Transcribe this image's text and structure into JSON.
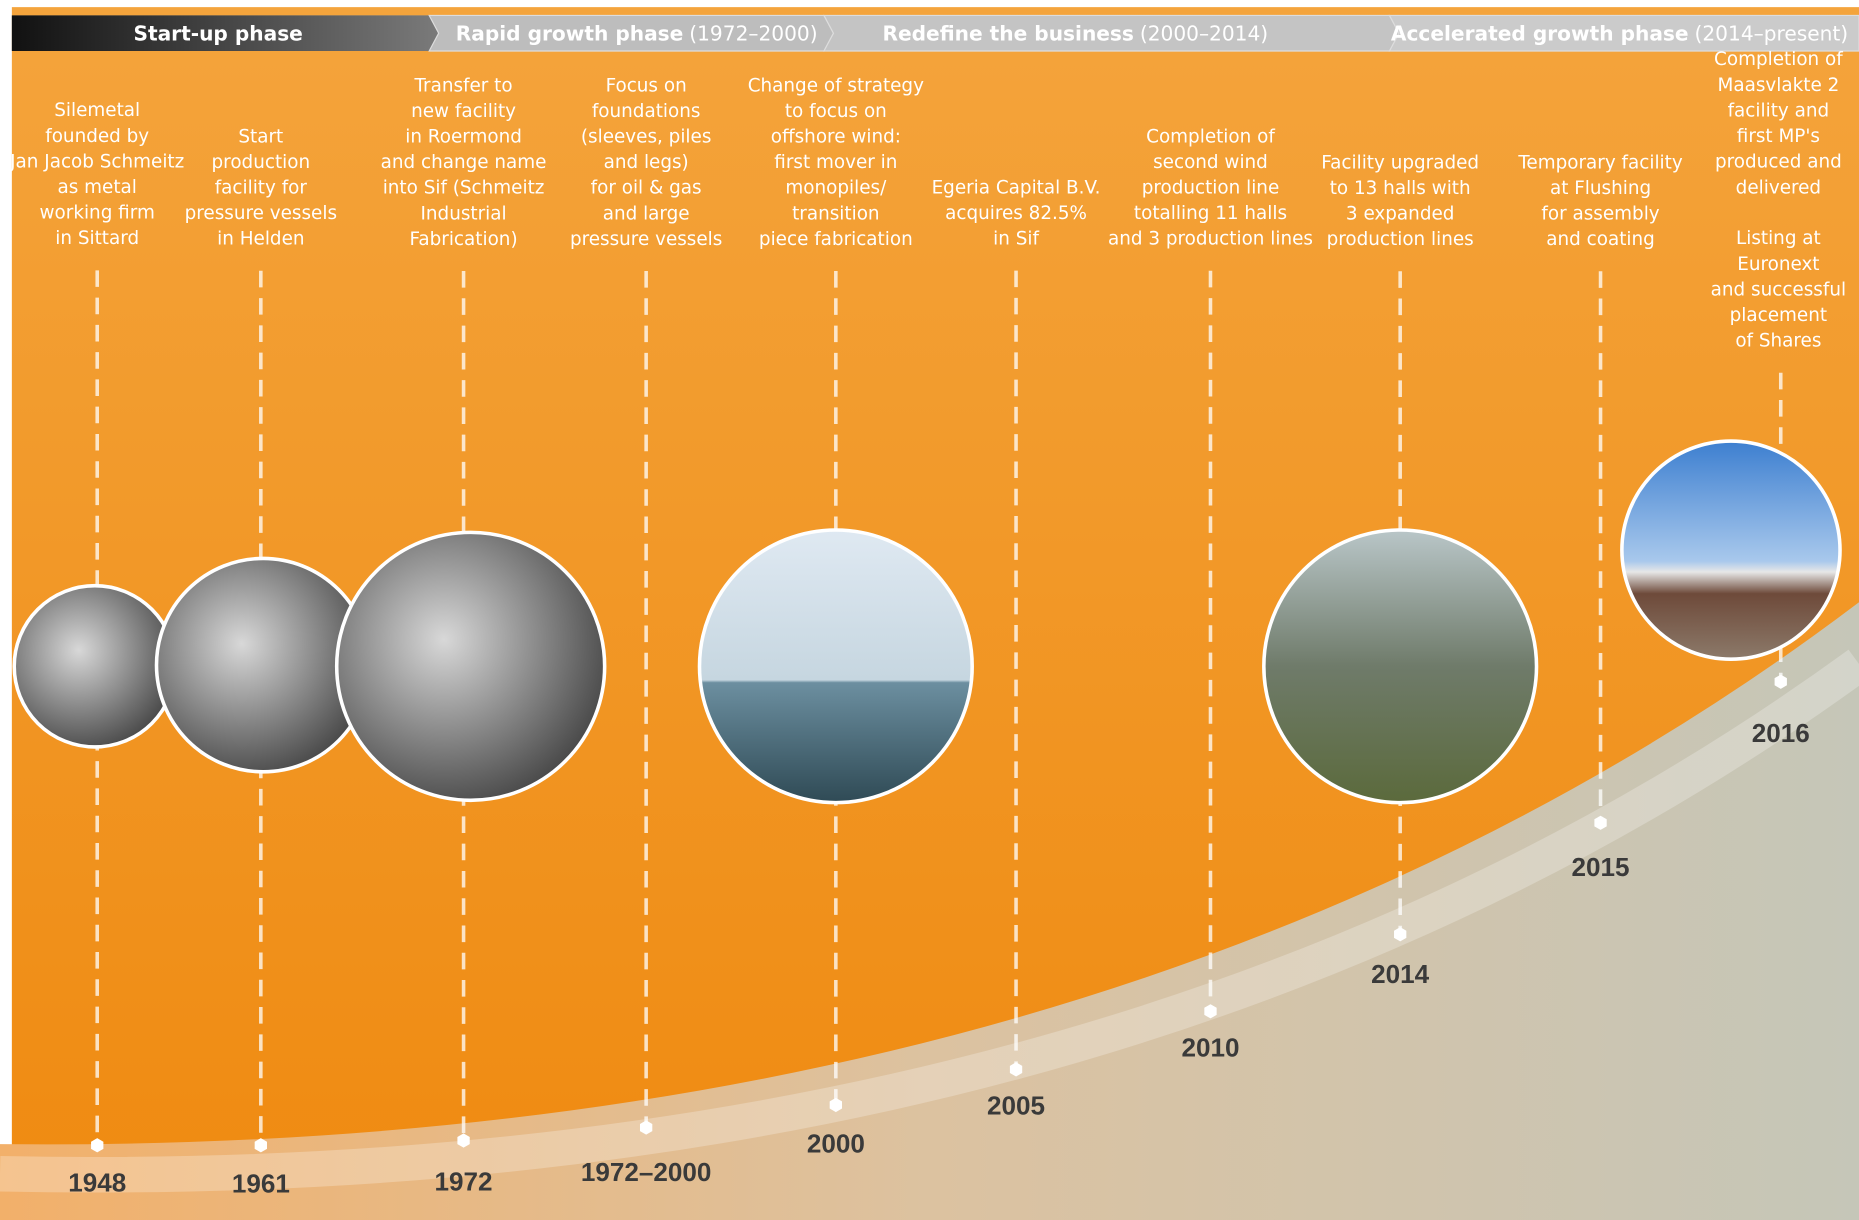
{
  "phases": [
    {
      "name": "Start-up phase"
    },
    {
      "name": "Rapid growth phase",
      "period": "(1972–2000)"
    },
    {
      "name": "Redefine the business",
      "period": "(2000–2014)"
    },
    {
      "name": "Accelerated growth phase",
      "period": "(2014–present)"
    }
  ],
  "events": [
    {
      "year": "1948",
      "lines": [
        "Silemetal",
        "founded by",
        "Jan Jacob Schmeitz",
        "as metal",
        "working firm",
        "in Sittard"
      ]
    },
    {
      "year": "1961",
      "lines": [
        "Start",
        "production",
        "facility for",
        "pressure vessels",
        "in Helden"
      ]
    },
    {
      "year": "1972",
      "lines": [
        "Transfer to",
        "new facility",
        "in Roermond",
        "and change name",
        "into Sif (Schmeitz",
        "Industrial",
        "Fabrication)"
      ]
    },
    {
      "year": "1972–2000",
      "lines": [
        "Focus on",
        "foundations",
        "(sleeves, piles",
        "and legs)",
        "for oil & gas",
        "and large",
        "pressure vessels"
      ]
    },
    {
      "year": "2000",
      "lines": [
        "Change of strategy",
        "to focus on",
        "offshore wind:",
        "first mover in",
        "monopiles/",
        "transition",
        "piece fabrication"
      ]
    },
    {
      "year": "2005",
      "lines": [
        "Egeria Capital B.V.",
        "acquires 82.5%",
        "in Sif"
      ]
    },
    {
      "year": "2010",
      "lines": [
        "Completion of",
        "second wind",
        "production line",
        "totalling 11 halls",
        "and 3 production lines"
      ]
    },
    {
      "year": "2014",
      "lines": [
        "Facility upgraded",
        "to 13 halls with",
        "3 expanded",
        "production lines"
      ]
    },
    {
      "year": "2015",
      "lines": [
        "Temporary facility",
        "at Flushing",
        "for assembly",
        "and coating"
      ]
    },
    {
      "year": "2016",
      "lines": [
        "Completion of",
        "Maasvlakte 2",
        "facility and",
        "first MP's",
        "produced and",
        "delivered"
      ],
      "lines2": [
        "Listing at",
        "Euronext",
        "and successful",
        "placement",
        "of Shares"
      ]
    }
  ]
}
